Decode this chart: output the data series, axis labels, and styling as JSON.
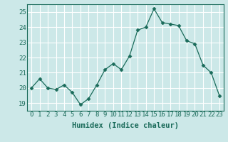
{
  "x": [
    0,
    1,
    2,
    3,
    4,
    5,
    6,
    7,
    8,
    9,
    10,
    11,
    12,
    13,
    14,
    15,
    16,
    17,
    18,
    19,
    20,
    21,
    22,
    23
  ],
  "y": [
    20.0,
    20.6,
    20.0,
    19.9,
    20.2,
    19.7,
    18.9,
    19.3,
    20.2,
    21.2,
    21.6,
    21.2,
    22.1,
    23.8,
    24.0,
    25.2,
    24.3,
    24.2,
    24.1,
    23.1,
    22.9,
    21.5,
    21.0,
    19.5
  ],
  "line_color": "#1a6b5a",
  "marker": "D",
  "marker_size": 2.5,
  "bg_color": "#cce8e8",
  "grid_color": "#ffffff",
  "xlabel": "Humidex (Indice chaleur)",
  "ylim": [
    18.5,
    25.5
  ],
  "xlim": [
    -0.5,
    23.5
  ],
  "yticks": [
    19,
    20,
    21,
    22,
    23,
    24,
    25
  ],
  "xticks": [
    0,
    1,
    2,
    3,
    4,
    5,
    6,
    7,
    8,
    9,
    10,
    11,
    12,
    13,
    14,
    15,
    16,
    17,
    18,
    19,
    20,
    21,
    22,
    23
  ],
  "label_fontsize": 7.5,
  "tick_fontsize": 6.5
}
